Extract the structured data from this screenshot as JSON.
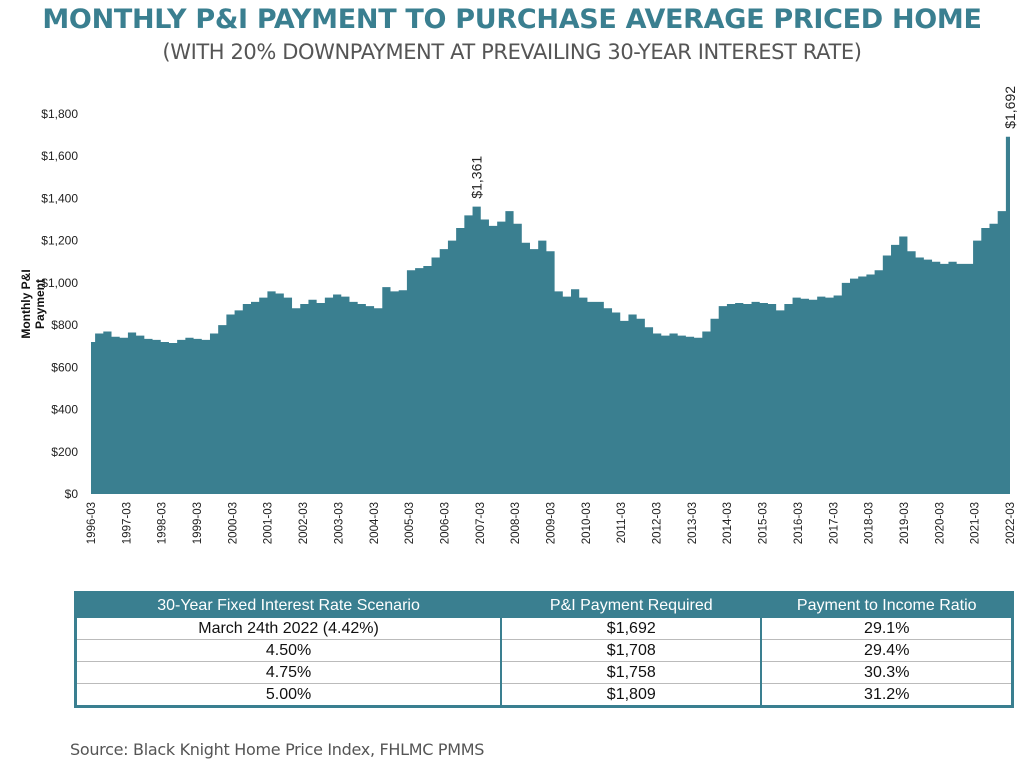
{
  "header": {
    "title": "MONTHLY P&I PAYMENT TO PURCHASE AVERAGE PRICED HOME",
    "subtitle": "(WITH 20% DOWNPAYMENT AT PREVAILING 30-YEAR INTEREST RATE)"
  },
  "colors": {
    "brand": "#3a7f90",
    "area_fill": "#3a7f90"
  },
  "chart_data": {
    "type": "area",
    "title": "MONTHLY P&I PAYMENT TO PURCHASE AVERAGE PRICED HOME",
    "subtitle": "(WITH 20% DOWNPAYMENT AT PREVAILING 30-YEAR INTEREST RATE)",
    "xlabel": "",
    "ylabel": "Monthly P&I Payment",
    "ylim": [
      0,
      1800
    ],
    "y_ticks": [
      "$0",
      "$200",
      "$400",
      "$600",
      "$800",
      "$1,000",
      "$1,200",
      "$1,400",
      "$1,600",
      "$1,800"
    ],
    "y_tick_values": [
      0,
      200,
      400,
      600,
      800,
      1000,
      1200,
      1400,
      1600,
      1800
    ],
    "x_ticks": [
      "1996-03",
      "1997-03",
      "1998-03",
      "1999-03",
      "2000-03",
      "2001-03",
      "2002-03",
      "2003-03",
      "2004-03",
      "2005-03",
      "2006-03",
      "2007-03",
      "2008-03",
      "2009-03",
      "2010-03",
      "2011-03",
      "2012-03",
      "2013-03",
      "2014-03",
      "2015-03",
      "2016-03",
      "2017-03",
      "2018-03",
      "2019-03",
      "2020-03",
      "2021-03",
      "2022-03"
    ],
    "x_start": "1996-03",
    "x_end": "2022-03",
    "x_frequency": "quarterly",
    "grid": false,
    "legend": "none",
    "series": [
      {
        "name": "Monthly P&I Payment",
        "values": [
          720,
          760,
          770,
          745,
          740,
          765,
          750,
          735,
          730,
          720,
          715,
          730,
          740,
          735,
          730,
          760,
          800,
          850,
          870,
          900,
          910,
          930,
          960,
          950,
          930,
          880,
          900,
          920,
          905,
          930,
          945,
          935,
          910,
          900,
          890,
          880,
          980,
          960,
          965,
          1060,
          1070,
          1080,
          1120,
          1160,
          1200,
          1260,
          1320,
          1361,
          1300,
          1270,
          1290,
          1340,
          1280,
          1190,
          1160,
          1200,
          1150,
          960,
          935,
          970,
          930,
          910,
          910,
          880,
          860,
          820,
          850,
          830,
          790,
          760,
          750,
          760,
          750,
          745,
          740,
          770,
          830,
          890,
          900,
          905,
          900,
          910,
          905,
          900,
          870,
          900,
          930,
          925,
          920,
          935,
          930,
          940,
          1000,
          1020,
          1030,
          1040,
          1060,
          1130,
          1180,
          1220,
          1150,
          1120,
          1110,
          1100,
          1090,
          1100,
          1090,
          1090,
          1200,
          1260,
          1280,
          1340,
          1692
        ]
      }
    ],
    "annotations": [
      {
        "label": "$1,361",
        "x": "2006-Q2",
        "value": 1361
      },
      {
        "label": "$1,692",
        "x": "2022-03",
        "value": 1692
      }
    ]
  },
  "table": {
    "headers": [
      "30-Year Fixed Interest Rate Scenario",
      "P&I Payment Required",
      "Payment to Income Ratio"
    ],
    "rows": [
      [
        "March 24th 2022 (4.42%)",
        "$1,692",
        "29.1%"
      ],
      [
        "4.50%",
        "$1,708",
        "29.4%"
      ],
      [
        "4.75%",
        "$1,758",
        "30.3%"
      ],
      [
        "5.00%",
        "$1,809",
        "31.2%"
      ]
    ]
  },
  "footer": {
    "source": "Source: Black Knight Home Price Index, FHLMC PMMS"
  }
}
